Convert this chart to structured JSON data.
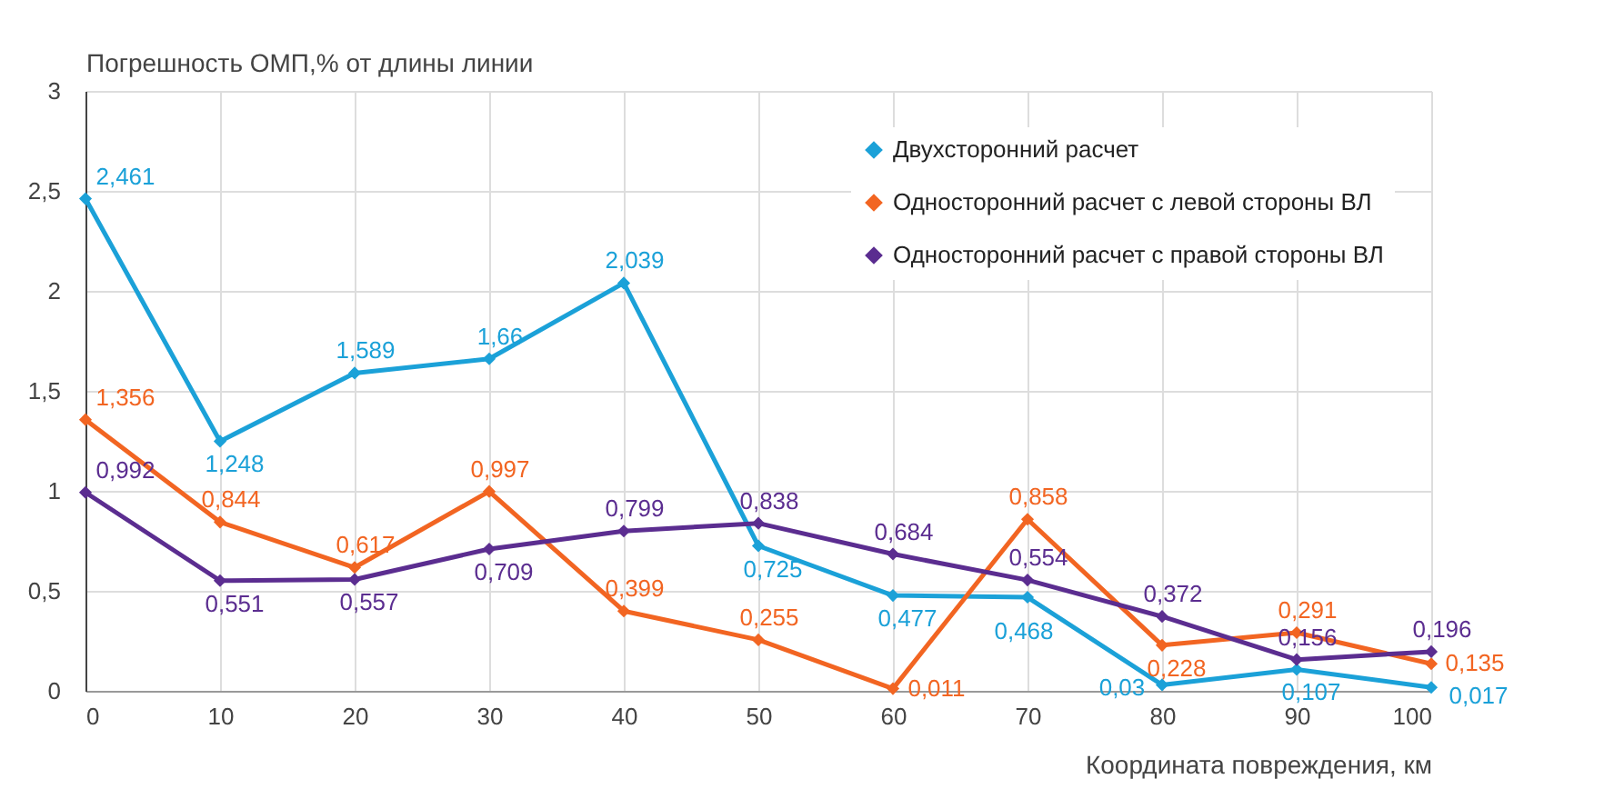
{
  "chart_data": {
    "type": "line",
    "ylabel": "Погрешность ОМП,% от длины линии",
    "xlabel": "Координата повреждения, км",
    "x": [
      0,
      10,
      20,
      30,
      40,
      50,
      60,
      70,
      80,
      90,
      100
    ],
    "xlim": [
      0,
      100
    ],
    "xticks": [
      0,
      10,
      20,
      30,
      40,
      50,
      60,
      70,
      80,
      90,
      100
    ],
    "ylim": [
      0,
      3
    ],
    "yticks": [
      0,
      {
        "value": 0.5,
        "label": "0,5"
      },
      1,
      {
        "value": 1.5,
        "label": "1,5"
      },
      2,
      {
        "value": 2.5,
        "label": "2,5"
      },
      3
    ],
    "grid": true,
    "legend": "top right",
    "marker": "diamond",
    "line_style": "solid",
    "series": [
      {
        "name": "Двухсторонний расчет",
        "color": "#1ba1d8",
        "values": [
          2.461,
          1.248,
          1.589,
          1.66,
          2.039,
          0.725,
          0.477,
          0.468,
          0.03,
          0.107,
          0.017
        ],
        "value_labels": [
          "2,461",
          "1,248",
          "1,589",
          "1,66",
          "2,039",
          "0,725",
          "0,477",
          "0,468",
          "0,03",
          "0,107",
          "0,017"
        ]
      },
      {
        "name": "Односторонний расчет с левой стороны ВЛ",
        "color": "#f26522",
        "values": [
          1.356,
          0.844,
          0.617,
          0.997,
          0.399,
          0.255,
          0.011,
          0.858,
          0.228,
          0.291,
          0.135
        ],
        "value_labels": [
          "1,356",
          "0,844",
          "0,617",
          "0,997",
          "0,399",
          "0,255",
          "0,011",
          "0,858",
          "0,228",
          "0,291",
          "0,135"
        ]
      },
      {
        "name": "Односторонний расчет с правой стороны ВЛ",
        "color": "#5b2d90",
        "values": [
          0.992,
          0.551,
          0.557,
          0.709,
          0.799,
          0.838,
          0.684,
          0.554,
          0.372,
          0.156,
          0.196
        ],
        "value_labels": [
          "0,992",
          "0,551",
          "0,557",
          "0,709",
          "0,799",
          "0,838",
          "0,684",
          "0,554",
          "0,372",
          "0,156",
          "0,196"
        ]
      }
    ]
  }
}
